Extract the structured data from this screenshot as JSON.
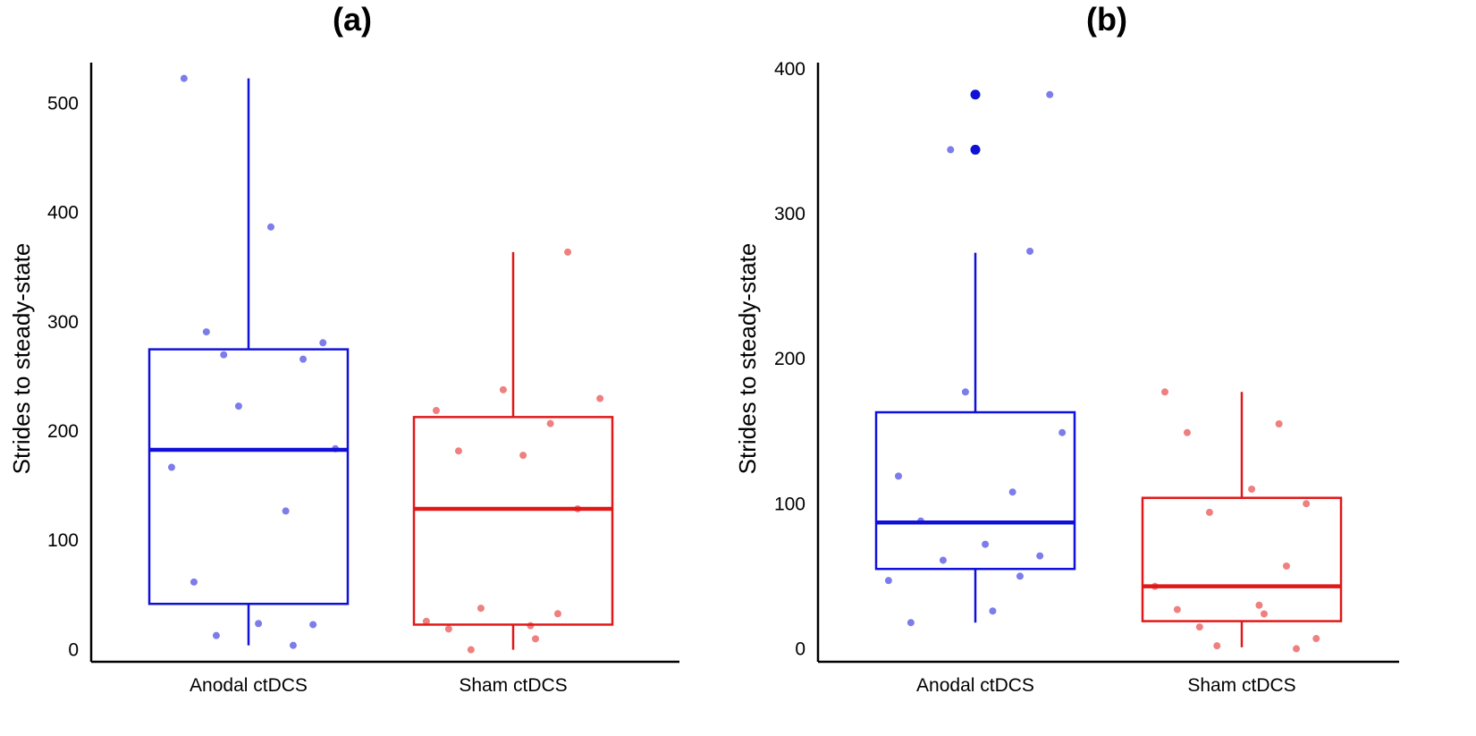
{
  "chart_data": [
    {
      "type": "box",
      "title": "(a)",
      "ylabel": "Strides to steady-state",
      "ylim": [
        -10,
        545
      ],
      "yticks": [
        0,
        100,
        200,
        300,
        400,
        500
      ],
      "categories": [
        "Anodal ctDCS",
        "Sham ctDCS"
      ],
      "series": [
        {
          "color": "#1010d8",
          "box": {
            "whisker_low": 5,
            "q1": 43,
            "median": 184,
            "q3": 276,
            "whisker_high": 524
          },
          "points": [
            524,
            388,
            292,
            282,
            271,
            267,
            224,
            185,
            168,
            128,
            63,
            25,
            24,
            14,
            5
          ],
          "outliers": []
        },
        {
          "color": "#e01818",
          "box": {
            "whisker_low": 1,
            "q1": 24,
            "median": 130,
            "q3": 214,
            "whisker_high": 365
          },
          "points": [
            365,
            239,
            231,
            220,
            208,
            183,
            179,
            130,
            39,
            34,
            27,
            23,
            20,
            11,
            1
          ],
          "outliers": []
        }
      ]
    },
    {
      "type": "box",
      "title": "(b)",
      "ylabel": "Strides to steady-state",
      "ylim": [
        -8,
        410
      ],
      "yticks": [
        0,
        100,
        200,
        300,
        400
      ],
      "categories": [
        "Anodal ctDCS",
        "Sham ctDCS"
      ],
      "series": [
        {
          "color": "#1010d8",
          "box": {
            "whisker_low": 19,
            "q1": 56,
            "median": 88,
            "q3": 164,
            "whisker_high": 274
          },
          "points": [
            383,
            345,
            275,
            178,
            150,
            120,
            109,
            89,
            73,
            65,
            62,
            51,
            48,
            27,
            19
          ],
          "outliers": [
            383,
            345
          ]
        },
        {
          "color": "#e01818",
          "box": {
            "whisker_low": 2,
            "q1": 20,
            "median": 44,
            "q3": 105,
            "whisker_high": 178
          },
          "points": [
            178,
            156,
            150,
            111,
            101,
            95,
            58,
            44,
            31,
            28,
            25,
            16,
            8,
            3,
            1
          ],
          "outliers": []
        }
      ]
    }
  ]
}
